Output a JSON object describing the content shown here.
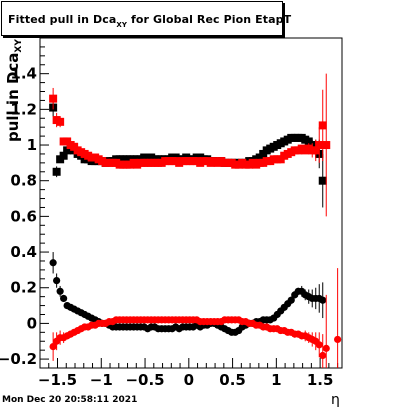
{
  "chart_data": {
    "type": "scatter",
    "title_main": "Fitted pull in Dca",
    "title_sub": "XY",
    "title_tail": " for Global Rec Pion EtapT",
    "ylabel_main": "pull in Dca",
    "ylabel_sub": "XY",
    "xlabel": "η",
    "xlim": [
      -1.7,
      1.75
    ],
    "ylim": [
      -0.25,
      1.6
    ],
    "x_ticks": [
      -1.5,
      -1,
      -0.5,
      0,
      0.5,
      1,
      1.5
    ],
    "x_tick_labels": [
      "−1.5",
      "−1",
      "−0.5",
      "0",
      "0.5",
      "1",
      "1.5"
    ],
    "y_ticks": [
      -0.2,
      0,
      0.2,
      0.4,
      0.6,
      0.8,
      1,
      1.2,
      1.4
    ],
    "y_tick_labels": [
      "−0.2",
      "0",
      "0.2",
      "0.4",
      "0.6",
      "0.8",
      "1",
      "1.2",
      "1.4"
    ],
    "series": [
      {
        "marker": "square",
        "color": "#000000",
        "x": [
          -1.55,
          -1.51,
          -1.47,
          -1.43,
          -1.39,
          -1.35,
          -1.31,
          -1.27,
          -1.23,
          -1.19,
          -1.15,
          -1.11,
          -1.07,
          -1.03,
          -0.99,
          -0.95,
          -0.91,
          -0.87,
          -0.83,
          -0.79,
          -0.75,
          -0.71,
          -0.67,
          -0.63,
          -0.59,
          -0.55,
          -0.51,
          -0.47,
          -0.43,
          -0.39,
          -0.35,
          -0.31,
          -0.27,
          -0.23,
          -0.19,
          -0.15,
          -0.11,
          -0.07,
          -0.03,
          0.01,
          0.05,
          0.09,
          0.13,
          0.17,
          0.21,
          0.25,
          0.29,
          0.33,
          0.37,
          0.41,
          0.45,
          0.49,
          0.53,
          0.57,
          0.61,
          0.65,
          0.69,
          0.73,
          0.77,
          0.81,
          0.85,
          0.89,
          0.93,
          0.97,
          1.01,
          1.05,
          1.09,
          1.13,
          1.17,
          1.21,
          1.25,
          1.29,
          1.33,
          1.37,
          1.41,
          1.45,
          1.49,
          1.53
        ],
        "y": [
          1.21,
          0.85,
          0.92,
          0.94,
          0.97,
          0.98,
          0.97,
          0.95,
          0.94,
          0.92,
          0.92,
          0.91,
          0.91,
          0.91,
          0.91,
          0.9,
          0.91,
          0.91,
          0.92,
          0.92,
          0.92,
          0.92,
          0.92,
          0.92,
          0.92,
          0.92,
          0.93,
          0.93,
          0.93,
          0.92,
          0.92,
          0.92,
          0.92,
          0.92,
          0.93,
          0.93,
          0.92,
          0.92,
          0.93,
          0.92,
          0.92,
          0.93,
          0.93,
          0.92,
          0.92,
          0.91,
          0.91,
          0.91,
          0.91,
          0.9,
          0.9,
          0.9,
          0.9,
          0.9,
          0.9,
          0.9,
          0.91,
          0.91,
          0.92,
          0.93,
          0.95,
          0.97,
          0.98,
          0.99,
          1.0,
          1.01,
          1.02,
          1.03,
          1.04,
          1.04,
          1.04,
          1.04,
          1.03,
          1.02,
          1.0,
          0.98,
          0.95,
          0.8
        ],
        "yerr": [
          0.05,
          0.03,
          0.02,
          0.01,
          0.01,
          0.01,
          0.01,
          0.01,
          0.01,
          0.01,
          0.01,
          0.01,
          0.01,
          0.01,
          0.01,
          0.01,
          0.01,
          0.01,
          0.01,
          0.01,
          0.01,
          0.01,
          0.01,
          0.01,
          0.01,
          0.01,
          0.01,
          0.01,
          0.01,
          0.01,
          0.01,
          0.01,
          0.01,
          0.01,
          0.01,
          0.01,
          0.01,
          0.01,
          0.01,
          0.01,
          0.01,
          0.01,
          0.01,
          0.01,
          0.01,
          0.01,
          0.01,
          0.01,
          0.01,
          0.01,
          0.01,
          0.01,
          0.01,
          0.01,
          0.01,
          0.01,
          0.01,
          0.01,
          0.01,
          0.01,
          0.01,
          0.01,
          0.01,
          0.01,
          0.01,
          0.01,
          0.01,
          0.01,
          0.01,
          0.01,
          0.01,
          0.01,
          0.02,
          0.02,
          0.03,
          0.05,
          0.08,
          0.15
        ]
      },
      {
        "marker": "square",
        "color": "#ff0000",
        "x": [
          -1.55,
          -1.51,
          -1.47,
          -1.43,
          -1.39,
          -1.35,
          -1.31,
          -1.27,
          -1.23,
          -1.19,
          -1.15,
          -1.11,
          -1.07,
          -1.03,
          -0.99,
          -0.95,
          -0.91,
          -0.87,
          -0.83,
          -0.79,
          -0.75,
          -0.71,
          -0.67,
          -0.63,
          -0.59,
          -0.55,
          -0.51,
          -0.47,
          -0.43,
          -0.39,
          -0.35,
          -0.31,
          -0.27,
          -0.23,
          -0.19,
          -0.15,
          -0.11,
          -0.07,
          -0.03,
          0.01,
          0.05,
          0.09,
          0.13,
          0.17,
          0.21,
          0.25,
          0.29,
          0.33,
          0.37,
          0.41,
          0.45,
          0.49,
          0.53,
          0.57,
          0.61,
          0.65,
          0.69,
          0.73,
          0.77,
          0.81,
          0.85,
          0.89,
          0.93,
          0.97,
          1.01,
          1.05,
          1.09,
          1.13,
          1.17,
          1.21,
          1.25,
          1.29,
          1.33,
          1.37,
          1.41,
          1.45,
          1.49,
          1.53,
          1.57
        ],
        "y": [
          1.26,
          1.14,
          1.13,
          1.02,
          1.02,
          1.0,
          0.99,
          0.97,
          0.96,
          0.95,
          0.94,
          0.93,
          0.93,
          0.92,
          0.91,
          0.9,
          0.9,
          0.9,
          0.9,
          0.89,
          0.89,
          0.89,
          0.89,
          0.9,
          0.89,
          0.9,
          0.9,
          0.9,
          0.9,
          0.9,
          0.9,
          0.9,
          0.91,
          0.91,
          0.91,
          0.91,
          0.9,
          0.91,
          0.91,
          0.91,
          0.91,
          0.91,
          0.9,
          0.91,
          0.91,
          0.9,
          0.91,
          0.9,
          0.91,
          0.9,
          0.9,
          0.9,
          0.89,
          0.89,
          0.9,
          0.89,
          0.89,
          0.9,
          0.89,
          0.9,
          0.9,
          0.91,
          0.91,
          0.92,
          0.92,
          0.92,
          0.94,
          0.95,
          0.96,
          0.97,
          0.97,
          0.98,
          0.97,
          0.98,
          0.97,
          0.97,
          1.0,
          1.11,
          1.0
        ],
        "yerr": [
          0.06,
          0.04,
          0.03,
          0.02,
          0.01,
          0.01,
          0.01,
          0.01,
          0.01,
          0.01,
          0.01,
          0.01,
          0.01,
          0.01,
          0.01,
          0.01,
          0.01,
          0.01,
          0.01,
          0.01,
          0.01,
          0.01,
          0.01,
          0.01,
          0.01,
          0.01,
          0.01,
          0.01,
          0.01,
          0.01,
          0.01,
          0.01,
          0.01,
          0.01,
          0.01,
          0.01,
          0.01,
          0.01,
          0.01,
          0.01,
          0.01,
          0.01,
          0.01,
          0.01,
          0.01,
          0.01,
          0.01,
          0.01,
          0.01,
          0.01,
          0.01,
          0.01,
          0.01,
          0.01,
          0.01,
          0.01,
          0.01,
          0.01,
          0.01,
          0.01,
          0.01,
          0.01,
          0.01,
          0.01,
          0.01,
          0.01,
          0.01,
          0.01,
          0.01,
          0.01,
          0.02,
          0.02,
          0.02,
          0.03,
          0.04,
          0.06,
          0.1,
          0.2,
          0.4
        ]
      },
      {
        "marker": "circle",
        "color": "#000000",
        "x": [
          -1.55,
          -1.51,
          -1.47,
          -1.43,
          -1.39,
          -1.35,
          -1.31,
          -1.27,
          -1.23,
          -1.19,
          -1.15,
          -1.11,
          -1.07,
          -1.03,
          -0.99,
          -0.95,
          -0.91,
          -0.87,
          -0.83,
          -0.79,
          -0.75,
          -0.71,
          -0.67,
          -0.63,
          -0.59,
          -0.55,
          -0.51,
          -0.47,
          -0.43,
          -0.39,
          -0.35,
          -0.31,
          -0.27,
          -0.23,
          -0.19,
          -0.15,
          -0.11,
          -0.07,
          -0.03,
          0.01,
          0.05,
          0.09,
          0.13,
          0.17,
          0.21,
          0.25,
          0.29,
          0.33,
          0.37,
          0.41,
          0.45,
          0.49,
          0.53,
          0.57,
          0.61,
          0.65,
          0.69,
          0.73,
          0.77,
          0.81,
          0.85,
          0.89,
          0.93,
          0.97,
          1.01,
          1.05,
          1.09,
          1.13,
          1.17,
          1.21,
          1.25,
          1.29,
          1.33,
          1.37,
          1.41,
          1.45,
          1.49,
          1.53
        ],
        "y": [
          0.34,
          0.24,
          0.18,
          0.14,
          0.1,
          0.09,
          0.08,
          0.07,
          0.06,
          0.05,
          0.04,
          0.03,
          0.02,
          0.01,
          0.0,
          0.0,
          -0.01,
          -0.02,
          -0.02,
          -0.02,
          -0.02,
          -0.02,
          -0.02,
          -0.02,
          -0.02,
          -0.02,
          -0.02,
          -0.03,
          -0.02,
          -0.02,
          -0.03,
          -0.03,
          -0.03,
          -0.03,
          -0.03,
          -0.02,
          -0.03,
          -0.02,
          -0.02,
          -0.02,
          -0.02,
          -0.01,
          -0.02,
          -0.01,
          -0.01,
          0.0,
          0.0,
          -0.01,
          -0.02,
          -0.03,
          -0.04,
          -0.05,
          -0.05,
          -0.04,
          -0.02,
          -0.01,
          0.0,
          0.0,
          0.01,
          0.01,
          0.02,
          0.02,
          0.02,
          0.03,
          0.05,
          0.07,
          0.09,
          0.11,
          0.13,
          0.16,
          0.18,
          0.18,
          0.16,
          0.15,
          0.14,
          0.14,
          0.14,
          0.13
        ],
        "yerr": [
          0.06,
          0.04,
          0.03,
          0.02,
          0.02,
          0.01,
          0.01,
          0.01,
          0.01,
          0.01,
          0.01,
          0.01,
          0.01,
          0.01,
          0.01,
          0.01,
          0.01,
          0.01,
          0.01,
          0.01,
          0.01,
          0.01,
          0.01,
          0.01,
          0.01,
          0.01,
          0.01,
          0.01,
          0.01,
          0.01,
          0.01,
          0.01,
          0.01,
          0.01,
          0.01,
          0.01,
          0.01,
          0.01,
          0.01,
          0.01,
          0.01,
          0.01,
          0.01,
          0.01,
          0.01,
          0.01,
          0.01,
          0.01,
          0.01,
          0.01,
          0.01,
          0.01,
          0.01,
          0.01,
          0.01,
          0.01,
          0.01,
          0.01,
          0.01,
          0.01,
          0.01,
          0.01,
          0.01,
          0.01,
          0.01,
          0.01,
          0.01,
          0.01,
          0.02,
          0.02,
          0.02,
          0.03,
          0.03,
          0.04,
          0.05,
          0.06,
          0.08,
          0.1
        ]
      },
      {
        "marker": "circle",
        "color": "#ff0000",
        "x": [
          -1.55,
          -1.51,
          -1.47,
          -1.43,
          -1.39,
          -1.35,
          -1.31,
          -1.27,
          -1.23,
          -1.19,
          -1.15,
          -1.11,
          -1.07,
          -1.03,
          -0.99,
          -0.95,
          -0.91,
          -0.87,
          -0.83,
          -0.79,
          -0.75,
          -0.71,
          -0.67,
          -0.63,
          -0.59,
          -0.55,
          -0.51,
          -0.47,
          -0.43,
          -0.39,
          -0.35,
          -0.31,
          -0.27,
          -0.23,
          -0.19,
          -0.15,
          -0.11,
          -0.07,
          -0.03,
          0.01,
          0.05,
          0.09,
          0.13,
          0.17,
          0.21,
          0.25,
          0.29,
          0.33,
          0.37,
          0.41,
          0.45,
          0.49,
          0.53,
          0.57,
          0.61,
          0.65,
          0.69,
          0.73,
          0.77,
          0.81,
          0.85,
          0.89,
          0.93,
          0.97,
          1.01,
          1.05,
          1.09,
          1.13,
          1.17,
          1.21,
          1.25,
          1.29,
          1.33,
          1.37,
          1.41,
          1.45,
          1.49,
          1.53,
          1.57,
          1.7
        ],
        "y": [
          -0.13,
          -0.1,
          -0.08,
          -0.08,
          -0.07,
          -0.06,
          -0.05,
          -0.04,
          -0.03,
          -0.02,
          -0.02,
          -0.01,
          -0.01,
          0.0,
          0.0,
          0.0,
          0.01,
          0.01,
          0.02,
          0.02,
          0.02,
          0.02,
          0.02,
          0.02,
          0.02,
          0.02,
          0.02,
          0.02,
          0.02,
          0.02,
          0.02,
          0.02,
          0.02,
          0.02,
          0.02,
          0.02,
          0.02,
          0.02,
          0.02,
          0.02,
          0.02,
          0.02,
          0.01,
          0.01,
          0.01,
          0.01,
          0.01,
          0.01,
          0.01,
          0.02,
          0.02,
          0.02,
          0.02,
          0.02,
          0.01,
          0.01,
          0.0,
          0.0,
          -0.01,
          -0.01,
          -0.02,
          -0.02,
          -0.03,
          -0.03,
          -0.03,
          -0.04,
          -0.04,
          -0.05,
          -0.05,
          -0.06,
          -0.06,
          -0.07,
          -0.07,
          -0.08,
          -0.09,
          -0.1,
          -0.12,
          -0.18,
          -0.14,
          -0.09
        ],
        "yerr": [
          0.08,
          0.05,
          0.04,
          0.03,
          0.02,
          0.02,
          0.01,
          0.01,
          0.01,
          0.01,
          0.01,
          0.01,
          0.01,
          0.01,
          0.01,
          0.01,
          0.01,
          0.01,
          0.01,
          0.01,
          0.01,
          0.01,
          0.01,
          0.01,
          0.01,
          0.01,
          0.01,
          0.01,
          0.01,
          0.01,
          0.01,
          0.01,
          0.01,
          0.01,
          0.01,
          0.01,
          0.01,
          0.01,
          0.01,
          0.01,
          0.01,
          0.01,
          0.01,
          0.01,
          0.01,
          0.01,
          0.01,
          0.01,
          0.01,
          0.01,
          0.01,
          0.01,
          0.01,
          0.01,
          0.01,
          0.01,
          0.01,
          0.01,
          0.01,
          0.01,
          0.01,
          0.01,
          0.01,
          0.01,
          0.01,
          0.01,
          0.01,
          0.01,
          0.01,
          0.02,
          0.02,
          0.02,
          0.03,
          0.03,
          0.04,
          0.05,
          0.07,
          0.12,
          0.3,
          0.4
        ]
      }
    ]
  },
  "timestamp": "Mon Dec 20 20:58:11 2021"
}
